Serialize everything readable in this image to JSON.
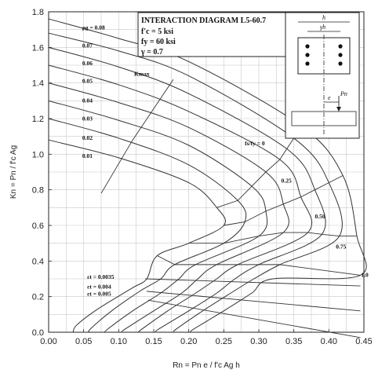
{
  "chart_data": {
    "type": "line",
    "title": "INTERACTION DIAGRAM L5-60.7",
    "parameters": [
      "f'c = 5 ksi",
      "fy = 60 ksi",
      "γ = 0.7"
    ],
    "xlabel": "Rn = Pn e / f'c Ag h",
    "ylabel": "Kn = Pn / f'c Ag",
    "xlim": [
      0,
      0.45
    ],
    "ylim": [
      0,
      1.8
    ],
    "xticks": [
      "0.00",
      "0.05",
      "0.10",
      "0.15",
      "0.20",
      "0.25",
      "0.30",
      "0.35",
      "0.40",
      "0.45"
    ],
    "yticks": [
      "0.0",
      "0.2",
      "0.4",
      "0.6",
      "0.8",
      "1.0",
      "1.2",
      "1.4",
      "1.6",
      "1.8"
    ],
    "grid": true,
    "series": [
      {
        "name": "ρg = 0.01",
        "points": [
          [
            0,
            1.08
          ],
          [
            0.1,
            0.98
          ],
          [
            0.2,
            0.84
          ],
          [
            0.24,
            0.7
          ],
          [
            0.25,
            0.6
          ],
          [
            0.2,
            0.5
          ],
          [
            0.155,
            0.43
          ],
          [
            0.14,
            0.3
          ],
          [
            0.12,
            0.25
          ],
          [
            0.07,
            0.13
          ],
          [
            0.04,
            0.04
          ],
          [
            0.035,
            0
          ]
        ]
      },
      {
        "name": "ρg = 0.02",
        "points": [
          [
            0,
            1.2
          ],
          [
            0.1,
            1.09
          ],
          [
            0.2,
            0.94
          ],
          [
            0.27,
            0.74
          ],
          [
            0.28,
            0.62
          ],
          [
            0.25,
            0.5
          ],
          [
            0.18,
            0.38
          ],
          [
            0.16,
            0.3
          ],
          [
            0.13,
            0.23
          ],
          [
            0.09,
            0.12
          ],
          [
            0.06,
            0.02
          ],
          [
            0.058,
            0
          ]
        ]
      },
      {
        "name": "ρg = 0.03",
        "points": [
          [
            0,
            1.3
          ],
          [
            0.1,
            1.19
          ],
          [
            0.2,
            1.05
          ],
          [
            0.29,
            0.82
          ],
          [
            0.31,
            0.68
          ],
          [
            0.3,
            0.54
          ],
          [
            0.21,
            0.38
          ],
          [
            0.186,
            0.3
          ],
          [
            0.16,
            0.22
          ],
          [
            0.12,
            0.12
          ],
          [
            0.085,
            0.02
          ],
          [
            0.08,
            0
          ]
        ]
      },
      {
        "name": "ρg = 0.04",
        "points": [
          [
            0,
            1.4
          ],
          [
            0.1,
            1.29
          ],
          [
            0.2,
            1.15
          ],
          [
            0.31,
            0.9
          ],
          [
            0.335,
            0.72
          ],
          [
            0.335,
            0.56
          ],
          [
            0.24,
            0.38
          ],
          [
            0.213,
            0.3
          ],
          [
            0.19,
            0.22
          ],
          [
            0.15,
            0.12
          ],
          [
            0.11,
            0.02
          ],
          [
            0.104,
            0
          ]
        ]
      },
      {
        "name": "ρg = 0.05",
        "points": [
          [
            0,
            1.5
          ],
          [
            0.1,
            1.39
          ],
          [
            0.2,
            1.24
          ],
          [
            0.33,
            0.97
          ],
          [
            0.36,
            0.76
          ],
          [
            0.37,
            0.56
          ],
          [
            0.27,
            0.38
          ],
          [
            0.24,
            0.3
          ],
          [
            0.21,
            0.22
          ],
          [
            0.17,
            0.12
          ],
          [
            0.134,
            0.02
          ],
          [
            0.128,
            0
          ]
        ]
      },
      {
        "name": "ρg = 0.06",
        "points": [
          [
            0,
            1.6
          ],
          [
            0.1,
            1.49
          ],
          [
            0.2,
            1.34
          ],
          [
            0.34,
            1.03
          ],
          [
            0.38,
            0.8
          ],
          [
            0.39,
            0.55
          ],
          [
            0.3,
            0.38
          ],
          [
            0.266,
            0.3
          ],
          [
            0.24,
            0.22
          ],
          [
            0.2,
            0.12
          ],
          [
            0.158,
            0.02
          ],
          [
            0.152,
            0
          ]
        ]
      },
      {
        "name": "ρg = 0.07",
        "points": [
          [
            0,
            1.68
          ],
          [
            0.1,
            1.58
          ],
          [
            0.2,
            1.44
          ],
          [
            0.35,
            1.09
          ],
          [
            0.4,
            0.84
          ],
          [
            0.415,
            0.54
          ],
          [
            0.33,
            0.38
          ],
          [
            0.293,
            0.3
          ],
          [
            0.26,
            0.22
          ],
          [
            0.22,
            0.12
          ],
          [
            0.183,
            0.02
          ],
          [
            0.178,
            0
          ]
        ]
      },
      {
        "name": "ρg = 0.08",
        "points": [
          [
            0,
            1.76
          ],
          [
            0.1,
            1.65
          ],
          [
            0.2,
            1.52
          ],
          [
            0.36,
            1.16
          ],
          [
            0.42,
            0.88
          ],
          [
            0.44,
            0.54
          ],
          [
            0.445,
            0.32
          ],
          [
            0.32,
            0.3
          ],
          [
            0.29,
            0.22
          ],
          [
            0.25,
            0.12
          ],
          [
            0.208,
            0.02
          ],
          [
            0.202,
            0
          ]
        ]
      }
    ],
    "annotations": [
      {
        "text": "ρg = 0.08",
        "x": 0.048,
        "y": 1.7
      },
      {
        "text": "0.07",
        "x": 0.048,
        "y": 1.6
      },
      {
        "text": "0.06",
        "x": 0.048,
        "y": 1.5
      },
      {
        "text": "0.05",
        "x": 0.048,
        "y": 1.4
      },
      {
        "text": "0.04",
        "x": 0.048,
        "y": 1.29
      },
      {
        "text": "0.03",
        "x": 0.048,
        "y": 1.19
      },
      {
        "text": "0.02",
        "x": 0.048,
        "y": 1.08
      },
      {
        "text": "0.01",
        "x": 0.048,
        "y": 0.98
      },
      {
        "text": "Kmax",
        "x": 0.122,
        "y": 1.44
      },
      {
        "text": "fs/fy = 0",
        "x": 0.28,
        "y": 1.05
      },
      {
        "text": "0.25",
        "x": 0.332,
        "y": 0.84
      },
      {
        "text": "0.50",
        "x": 0.38,
        "y": 0.64
      },
      {
        "text": "0.75",
        "x": 0.41,
        "y": 0.47
      },
      {
        "text": "1.0",
        "x": 0.446,
        "y": 0.31
      },
      {
        "text": "εt = 0.0035",
        "x": 0.055,
        "y": 0.3
      },
      {
        "text": "εt = 0.004",
        "x": 0.055,
        "y": 0.245
      },
      {
        "text": "εt = 0.005",
        "x": 0.055,
        "y": 0.205
      }
    ],
    "inset": {
      "labels": [
        "h",
        "γh",
        "e",
        "Pn"
      ]
    }
  }
}
